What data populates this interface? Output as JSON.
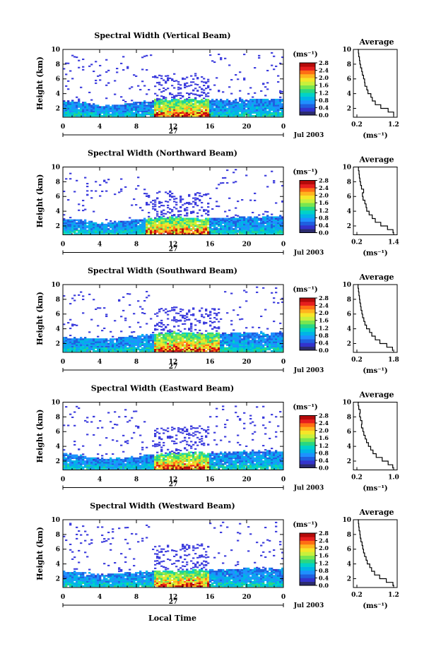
{
  "figure": {
    "xlabel": "Local Time",
    "date_day": "27",
    "date_label": "Jul 2003",
    "ylabel": "Height (km)",
    "avg_title": "Average",
    "unit_label": "(ms⁻¹)",
    "avg_xlabel": "(ms⁻¹)"
  },
  "colors": {
    "scale": [
      "#2b2b6e",
      "#3333cc",
      "#1f5fe0",
      "#1e90ff",
      "#00b4e6",
      "#00d2c8",
      "#28d782",
      "#78e650",
      "#c8f03c",
      "#f5e628",
      "#ffb41e",
      "#ff6e14",
      "#e61e1e",
      "#b40a0a"
    ],
    "sparse_echo": "#3b3bdd"
  },
  "chart_data": [
    {
      "type": "heatmap",
      "title": "Spectral Width (Vertical Beam)",
      "x_label": "Local Time",
      "x_range": [
        0,
        24
      ],
      "x_ticks": [
        "0",
        "4",
        "8",
        "12",
        "16",
        "20",
        "0"
      ],
      "y_label": "Height (km)",
      "y_range": [
        0.8,
        10
      ],
      "y_ticks": [
        "2",
        "4",
        "6",
        "8",
        "10"
      ],
      "colorbar_unit": "(ms⁻¹)",
      "colorbar_range": [
        0.0,
        2.8
      ],
      "colorbar_ticks": [
        "2.8",
        "2.4",
        "2.0",
        "1.6",
        "1.2",
        "0.8",
        "0.4",
        "0.0"
      ],
      "dense_layer_top_km": [
        2.9,
        2.8,
        2.3,
        2.4,
        2.8,
        3.0,
        3.1,
        3.2,
        3.1,
        3.0,
        3.1,
        3.2,
        3.3
      ],
      "peak_width_hours": [
        10,
        16
      ],
      "average_profile": {
        "title": "Average",
        "x_ticks": [
          "0.2",
          "1.2"
        ],
        "x_range": [
          0.2,
          1.2
        ],
        "x_label": "(ms⁻¹)",
        "y_range": [
          0.8,
          10
        ],
        "y_ticks": [
          "2",
          "4",
          "6",
          "8",
          "10"
        ],
        "heights_km": [
          1.0,
          1.5,
          2.0,
          2.5,
          3.0,
          3.5,
          4.0,
          4.5,
          5.0,
          5.5,
          6.0,
          6.5,
          7.0,
          7.5,
          8.0,
          8.5,
          9.0,
          9.5,
          10.0
        ],
        "values": [
          1.2,
          1.05,
          0.85,
          0.7,
          0.62,
          0.58,
          0.5,
          0.47,
          0.42,
          0.41,
          0.38,
          0.35,
          0.33,
          0.3,
          0.28,
          0.27,
          0.25,
          0.24,
          0.22
        ]
      }
    },
    {
      "type": "heatmap",
      "title": "Spectral Width (Northward Beam)",
      "x_label": "Local Time",
      "x_range": [
        0,
        24
      ],
      "x_ticks": [
        "0",
        "4",
        "8",
        "12",
        "16",
        "20",
        "0"
      ],
      "y_label": "Height (km)",
      "y_range": [
        0.8,
        10
      ],
      "y_ticks": [
        "2",
        "4",
        "6",
        "8",
        "10"
      ],
      "colorbar_unit": "(ms⁻¹)",
      "colorbar_range": [
        0.0,
        2.8
      ],
      "colorbar_ticks": [
        "2.8",
        "2.4",
        "2.0",
        "1.6",
        "1.2",
        "0.8",
        "0.4",
        "0.0"
      ],
      "dense_layer_top_km": [
        2.9,
        2.7,
        2.3,
        2.5,
        2.8,
        3.0,
        3.1,
        3.0,
        3.0,
        3.0,
        3.1,
        3.2,
        3.3
      ],
      "peak_width_hours": [
        9,
        16
      ],
      "average_profile": {
        "title": "Average",
        "x_ticks": [
          "0.2",
          "1.4"
        ],
        "x_range": [
          0.2,
          1.4
        ],
        "x_label": "(ms⁻¹)",
        "y_range": [
          0.8,
          10
        ],
        "y_ticks": [
          "2",
          "4",
          "6",
          "8",
          "10"
        ],
        "heights_km": [
          1.0,
          1.5,
          2.0,
          2.5,
          3.0,
          3.5,
          4.0,
          4.5,
          5.0,
          5.5,
          6.0,
          6.5,
          7.0,
          7.5,
          8.0,
          8.5,
          9.0,
          9.5,
          10.0
        ],
        "values": [
          1.38,
          1.2,
          0.98,
          0.8,
          0.7,
          0.6,
          0.52,
          0.5,
          0.46,
          0.4,
          0.38,
          0.42,
          0.35,
          0.32,
          0.3,
          0.28,
          0.27,
          0.25,
          0.24
        ]
      }
    },
    {
      "type": "heatmap",
      "title": "Spectral Width (Southward Beam)",
      "x_label": "Local Time",
      "x_range": [
        0,
        24
      ],
      "x_ticks": [
        "0",
        "4",
        "8",
        "12",
        "16",
        "20",
        "0"
      ],
      "y_label": "Height (km)",
      "y_range": [
        0.8,
        10
      ],
      "y_ticks": [
        "2",
        "4",
        "6",
        "8",
        "10"
      ],
      "colorbar_unit": "(ms⁻¹)",
      "colorbar_range": [
        0.0,
        2.8
      ],
      "colorbar_ticks": [
        "2.8",
        "2.4",
        "2.0",
        "1.6",
        "1.2",
        "0.8",
        "0.4",
        "0.0"
      ],
      "dense_layer_top_km": [
        2.8,
        2.7,
        2.5,
        2.7,
        3.0,
        3.2,
        3.4,
        3.3,
        3.3,
        3.3,
        3.3,
        3.4,
        3.4
      ],
      "peak_width_hours": [
        10,
        17
      ],
      "average_profile": {
        "title": "Average",
        "x_ticks": [
          "0.2",
          "1.8"
        ],
        "x_range": [
          0.2,
          1.8
        ],
        "x_label": "(ms⁻¹)",
        "y_range": [
          0.8,
          10
        ],
        "y_ticks": [
          "2",
          "4",
          "6",
          "8",
          "10"
        ],
        "heights_km": [
          1.0,
          1.5,
          2.0,
          2.5,
          3.0,
          3.5,
          4.0,
          4.5,
          5.0,
          5.5,
          6.0,
          6.5,
          7.0,
          7.5,
          8.0,
          8.5,
          9.0,
          9.5,
          10.0
        ],
        "values": [
          1.75,
          1.5,
          1.2,
          1.0,
          0.85,
          0.75,
          0.62,
          0.55,
          0.5,
          0.45,
          0.42,
          0.38,
          0.36,
          0.33,
          0.31,
          0.29,
          0.27,
          0.25,
          0.23
        ]
      }
    },
    {
      "type": "heatmap",
      "title": "Spectral Width (Eastward Beam)",
      "x_label": "Local Time",
      "x_range": [
        0,
        24
      ],
      "x_ticks": [
        "0",
        "4",
        "8",
        "12",
        "16",
        "20",
        "0"
      ],
      "y_label": "Height (km)",
      "y_range": [
        0.8,
        10
      ],
      "y_ticks": [
        "2",
        "4",
        "6",
        "8",
        "10"
      ],
      "colorbar_unit": "(ms⁻¹)",
      "colorbar_range": [
        0.0,
        2.8
      ],
      "colorbar_ticks": [
        "2.8",
        "2.4",
        "2.0",
        "1.6",
        "1.2",
        "0.8",
        "0.4",
        "0.0"
      ],
      "dense_layer_top_km": [
        3.0,
        2.6,
        2.3,
        2.3,
        2.5,
        2.8,
        3.0,
        3.1,
        3.0,
        3.1,
        3.2,
        3.3,
        3.2
      ],
      "peak_width_hours": [
        10,
        16
      ],
      "average_profile": {
        "title": "Average",
        "x_ticks": [
          "0.2",
          "1.0"
        ],
        "x_range": [
          0.2,
          1.0
        ],
        "x_label": "(ms⁻¹)",
        "y_range": [
          0.8,
          10
        ],
        "y_ticks": [
          "2",
          "4",
          "6",
          "8",
          "10"
        ],
        "heights_km": [
          1.0,
          1.5,
          2.0,
          2.5,
          3.0,
          3.5,
          4.0,
          4.5,
          5.0,
          5.5,
          6.0,
          6.5,
          7.0,
          7.5,
          8.0,
          8.5,
          9.0,
          9.5,
          10.0
        ],
        "values": [
          0.98,
          0.88,
          0.75,
          0.62,
          0.55,
          0.5,
          0.45,
          0.41,
          0.38,
          0.35,
          0.33,
          0.3,
          0.31,
          0.28,
          0.26,
          0.27,
          0.24,
          0.23,
          0.22
        ]
      }
    },
    {
      "type": "heatmap",
      "title": "Spectral Width (Westward Beam)",
      "x_label": "Local Time",
      "x_range": [
        0,
        24
      ],
      "x_ticks": [
        "0",
        "4",
        "8",
        "12",
        "16",
        "20",
        "0"
      ],
      "y_label": "Height (km)",
      "y_range": [
        0.8,
        10
      ],
      "y_ticks": [
        "2",
        "4",
        "6",
        "8",
        "10"
      ],
      "colorbar_unit": "(ms⁻¹)",
      "colorbar_range": [
        0.0,
        2.8
      ],
      "colorbar_ticks": [
        "2.8",
        "2.4",
        "2.0",
        "1.6",
        "1.2",
        "0.8",
        "0.4",
        "0.0"
      ],
      "dense_layer_top_km": [
        3.0,
        2.8,
        2.5,
        2.6,
        2.8,
        3.0,
        3.0,
        3.1,
        3.1,
        3.2,
        3.2,
        3.3,
        3.2
      ],
      "peak_width_hours": [
        10,
        16
      ],
      "average_profile": {
        "title": "Average",
        "x_ticks": [
          "0.2",
          "1.2"
        ],
        "x_range": [
          0.2,
          1.2
        ],
        "x_label": "(ms⁻¹)",
        "y_range": [
          0.8,
          10
        ],
        "y_ticks": [
          "2",
          "4",
          "6",
          "8",
          "10"
        ],
        "heights_km": [
          1.0,
          1.5,
          2.0,
          2.5,
          3.0,
          3.5,
          4.0,
          4.5,
          5.0,
          5.5,
          6.0,
          6.5,
          7.0,
          7.5,
          8.0,
          8.5,
          9.0,
          9.5,
          10.0
        ],
        "values": [
          1.18,
          1.0,
          0.82,
          0.68,
          0.6,
          0.55,
          0.48,
          0.45,
          0.41,
          0.38,
          0.36,
          0.34,
          0.31,
          0.29,
          0.28,
          0.26,
          0.25,
          0.24,
          0.22
        ]
      }
    }
  ]
}
